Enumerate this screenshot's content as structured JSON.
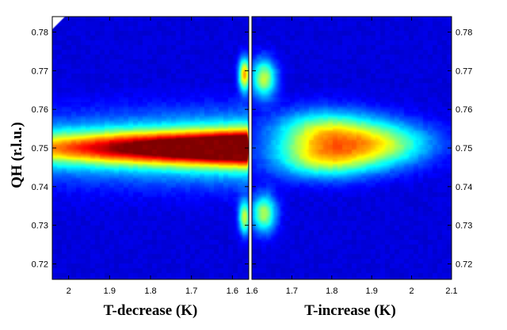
{
  "chart_data": [
    {
      "type": "heatmap",
      "panel": "left",
      "title": "",
      "xlabel": "T-decrease (K)",
      "ylabel": "QH (r.l.u.)",
      "xlim": [
        2.04,
        1.56
      ],
      "ylim": [
        0.716,
        0.784
      ],
      "xticks": [
        2,
        1.9,
        1.8,
        1.7,
        1.6
      ],
      "xtick_labels": [
        "2",
        "1.9",
        "1.8",
        "1.7",
        "1.6"
      ],
      "yticks": [
        0.72,
        0.73,
        0.74,
        0.75,
        0.76,
        0.77,
        0.78
      ],
      "ytick_labels": [
        "0.72",
        "0.73",
        "0.74",
        "0.75",
        "0.76",
        "0.77",
        "0.78"
      ],
      "colormap": "jet",
      "features": [
        {
          "kind": "ridge",
          "x_from": 2.04,
          "x_to": 1.565,
          "y": 0.75,
          "y_half_width": 0.0028,
          "intensity_at_x_from": 0.42,
          "intensity_at_x_to": 1.0
        },
        {
          "kind": "ridge",
          "x_from": 2.04,
          "x_to": 1.565,
          "y": 0.75,
          "y_half_width": 0.006,
          "intensity_at_x_from": 0.22,
          "intensity_at_x_to": 0.45
        },
        {
          "kind": "peak",
          "x": 1.57,
          "y": 0.769,
          "x_half_width": 0.01,
          "y_half_width": 0.003,
          "intensity": 0.62
        },
        {
          "kind": "peak",
          "x": 1.57,
          "y": 0.732,
          "x_half_width": 0.01,
          "y_half_width": 0.003,
          "intensity": 0.48
        }
      ]
    },
    {
      "type": "heatmap",
      "panel": "right",
      "title": "",
      "xlabel": "T-increase (K)",
      "ylabel": "",
      "xlim": [
        1.6,
        2.1
      ],
      "ylim": [
        0.716,
        0.784
      ],
      "xticks": [
        1.6,
        1.7,
        1.8,
        1.9,
        2,
        2.1
      ],
      "xtick_labels": [
        "1.6",
        "1.7",
        "1.8",
        "1.9",
        "2",
        "2.1"
      ],
      "yticks": [
        0.72,
        0.73,
        0.74,
        0.75,
        0.76,
        0.77,
        0.78
      ],
      "ytick_labels": [
        "0.72",
        "0.73",
        "0.74",
        "0.75",
        "0.76",
        "0.77",
        "0.78"
      ],
      "colormap": "jet",
      "features": [
        {
          "kind": "peak",
          "x": 1.63,
          "y": 0.768,
          "x_half_width": 0.022,
          "y_half_width": 0.0035,
          "intensity": 0.47
        },
        {
          "kind": "peak",
          "x": 1.63,
          "y": 0.733,
          "x_half_width": 0.022,
          "y_half_width": 0.0035,
          "intensity": 0.45
        },
        {
          "kind": "peak",
          "x": 1.78,
          "y": 0.754,
          "x_half_width": 0.09,
          "y_half_width": 0.004,
          "intensity": 0.46
        },
        {
          "kind": "peak",
          "x": 1.78,
          "y": 0.747,
          "x_half_width": 0.09,
          "y_half_width": 0.0035,
          "intensity": 0.42
        },
        {
          "kind": "peak",
          "x": 1.93,
          "y": 0.751,
          "x_half_width": 0.09,
          "y_half_width": 0.004,
          "intensity": 0.4
        }
      ]
    }
  ]
}
